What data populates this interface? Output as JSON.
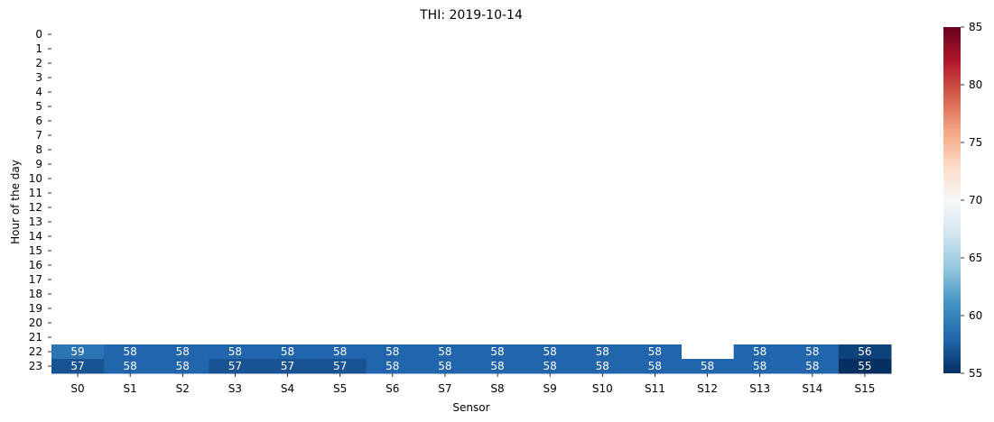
{
  "chart_data": {
    "type": "heatmap",
    "title": "THI: 2019-10-14",
    "xlabel": "Sensor",
    "ylabel": "Hour of the day",
    "x_categories": [
      "S0",
      "S1",
      "S2",
      "S3",
      "S4",
      "S5",
      "S6",
      "S7",
      "S8",
      "S9",
      "S10",
      "S11",
      "S12",
      "S13",
      "S14",
      "S15"
    ],
    "y_categories": [
      "0",
      "1",
      "2",
      "3",
      "4",
      "5",
      "6",
      "7",
      "8",
      "9",
      "10",
      "11",
      "12",
      "13",
      "14",
      "15",
      "16",
      "17",
      "18",
      "19",
      "20",
      "21",
      "22",
      "23"
    ],
    "values": [
      [
        null,
        null,
        null,
        null,
        null,
        null,
        null,
        null,
        null,
        null,
        null,
        null,
        null,
        null,
        null,
        null
      ],
      [
        null,
        null,
        null,
        null,
        null,
        null,
        null,
        null,
        null,
        null,
        null,
        null,
        null,
        null,
        null,
        null
      ],
      [
        null,
        null,
        null,
        null,
        null,
        null,
        null,
        null,
        null,
        null,
        null,
        null,
        null,
        null,
        null,
        null
      ],
      [
        null,
        null,
        null,
        null,
        null,
        null,
        null,
        null,
        null,
        null,
        null,
        null,
        null,
        null,
        null,
        null
      ],
      [
        null,
        null,
        null,
        null,
        null,
        null,
        null,
        null,
        null,
        null,
        null,
        null,
        null,
        null,
        null,
        null
      ],
      [
        null,
        null,
        null,
        null,
        null,
        null,
        null,
        null,
        null,
        null,
        null,
        null,
        null,
        null,
        null,
        null
      ],
      [
        null,
        null,
        null,
        null,
        null,
        null,
        null,
        null,
        null,
        null,
        null,
        null,
        null,
        null,
        null,
        null
      ],
      [
        null,
        null,
        null,
        null,
        null,
        null,
        null,
        null,
        null,
        null,
        null,
        null,
        null,
        null,
        null,
        null
      ],
      [
        null,
        null,
        null,
        null,
        null,
        null,
        null,
        null,
        null,
        null,
        null,
        null,
        null,
        null,
        null,
        null
      ],
      [
        null,
        null,
        null,
        null,
        null,
        null,
        null,
        null,
        null,
        null,
        null,
        null,
        null,
        null,
        null,
        null
      ],
      [
        null,
        null,
        null,
        null,
        null,
        null,
        null,
        null,
        null,
        null,
        null,
        null,
        null,
        null,
        null,
        null
      ],
      [
        null,
        null,
        null,
        null,
        null,
        null,
        null,
        null,
        null,
        null,
        null,
        null,
        null,
        null,
        null,
        null
      ],
      [
        null,
        null,
        null,
        null,
        null,
        null,
        null,
        null,
        null,
        null,
        null,
        null,
        null,
        null,
        null,
        null
      ],
      [
        null,
        null,
        null,
        null,
        null,
        null,
        null,
        null,
        null,
        null,
        null,
        null,
        null,
        null,
        null,
        null
      ],
      [
        null,
        null,
        null,
        null,
        null,
        null,
        null,
        null,
        null,
        null,
        null,
        null,
        null,
        null,
        null,
        null
      ],
      [
        null,
        null,
        null,
        null,
        null,
        null,
        null,
        null,
        null,
        null,
        null,
        null,
        null,
        null,
        null,
        null
      ],
      [
        null,
        null,
        null,
        null,
        null,
        null,
        null,
        null,
        null,
        null,
        null,
        null,
        null,
        null,
        null,
        null
      ],
      [
        null,
        null,
        null,
        null,
        null,
        null,
        null,
        null,
        null,
        null,
        null,
        null,
        null,
        null,
        null,
        null
      ],
      [
        null,
        null,
        null,
        null,
        null,
        null,
        null,
        null,
        null,
        null,
        null,
        null,
        null,
        null,
        null,
        null
      ],
      [
        null,
        null,
        null,
        null,
        null,
        null,
        null,
        null,
        null,
        null,
        null,
        null,
        null,
        null,
        null,
        null
      ],
      [
        null,
        null,
        null,
        null,
        null,
        null,
        null,
        null,
        null,
        null,
        null,
        null,
        null,
        null,
        null,
        null
      ],
      [
        null,
        null,
        null,
        null,
        null,
        null,
        null,
        null,
        null,
        null,
        null,
        null,
        null,
        null,
        null,
        null
      ],
      [
        59,
        58,
        58,
        58,
        58,
        58,
        58,
        58,
        58,
        58,
        58,
        58,
        null,
        58,
        58,
        56
      ],
      [
        57,
        58,
        58,
        57,
        57,
        57,
        58,
        58,
        58,
        58,
        58,
        58,
        58,
        58,
        58,
        55
      ]
    ],
    "colorbar": {
      "min": 55,
      "max": 85,
      "ticks": [
        55,
        60,
        65,
        70,
        75,
        80,
        85
      ],
      "colormap": "RdBu_r"
    },
    "legend_position": "right"
  }
}
